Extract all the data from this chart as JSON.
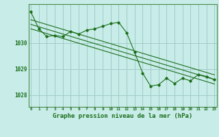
{
  "background_color": "#c8ece8",
  "grid_color": "#a0ccc8",
  "line_color": "#1a6e1a",
  "marker_color": "#1a6e1a",
  "xlabel": "Graphe pression niveau de la mer (hPa)",
  "xlabel_fontsize": 6.5,
  "xtick_labels": [
    "0",
    "1",
    "2",
    "3",
    "4",
    "5",
    "6",
    "7",
    "8",
    "9",
    "10",
    "11",
    "12",
    "13",
    "14",
    "15",
    "16",
    "17",
    "18",
    "19",
    "20",
    "21",
    "22",
    "23"
  ],
  "ytick_positions": [
    1028,
    1029,
    1030
  ],
  "ylim": [
    1027.55,
    1031.5
  ],
  "xlim": [
    -0.3,
    23.3
  ],
  "series1_x": [
    0,
    1,
    2,
    3,
    4,
    5,
    6,
    7,
    8,
    9,
    10,
    11,
    12,
    13,
    14,
    15,
    16,
    17,
    18,
    19,
    20,
    21,
    22,
    23
  ],
  "series1_y": [
    1031.2,
    1030.55,
    1030.25,
    1030.3,
    1030.25,
    1030.45,
    1030.35,
    1030.5,
    1030.55,
    1030.65,
    1030.75,
    1030.8,
    1030.4,
    1029.65,
    1028.85,
    1028.35,
    1028.4,
    1028.65,
    1028.45,
    1028.65,
    1028.55,
    1028.8,
    1028.72,
    1028.6
  ],
  "line1_x": [
    0,
    23
  ],
  "line1_y": [
    1030.9,
    1028.78
  ],
  "line2_x": [
    0,
    23
  ],
  "line2_y": [
    1030.72,
    1028.6
  ],
  "line3_x": [
    0,
    23
  ],
  "line3_y": [
    1030.55,
    1028.43
  ]
}
